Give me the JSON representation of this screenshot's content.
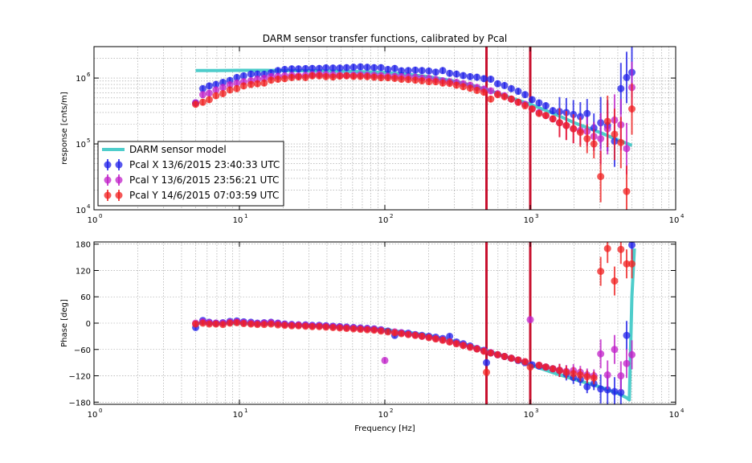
{
  "chart_data": [
    {
      "type": "scatter",
      "title": "DARM sensor transfer functions, calibrated by Pcal",
      "xlabel": "",
      "ylabel": "response [cnts/m]",
      "xscale": "log",
      "yscale": "log",
      "xlim": [
        1,
        10000
      ],
      "ylim": [
        10000,
        3000000
      ],
      "grid": true,
      "legend_position": "lower-left",
      "xticks": [
        {
          "base": "10",
          "exp": "0"
        },
        {
          "base": "10",
          "exp": "1"
        },
        {
          "base": "10",
          "exp": "2"
        },
        {
          "base": "10",
          "exp": "3"
        },
        {
          "base": "10",
          "exp": "4"
        }
      ],
      "yticks": [
        {
          "base": "10",
          "exp": "4"
        },
        {
          "base": "10",
          "exp": "5"
        },
        {
          "base": "10",
          "exp": "6"
        }
      ],
      "model": {
        "name": "DARM sensor model",
        "color": "#4ECDCB",
        "x": [
          5,
          7,
          10,
          15,
          20,
          30,
          50,
          70,
          100,
          150,
          200,
          300,
          400,
          500,
          700,
          1000,
          1500,
          2000,
          3000,
          4000,
          5000
        ],
        "y": [
          1300000,
          1300000,
          1310000,
          1310000,
          1300000,
          1290000,
          1270000,
          1250000,
          1210000,
          1130000,
          1050000,
          900000,
          770000,
          670000,
          520000,
          400000,
          280000,
          210000,
          150000,
          115000,
          95000
        ]
      },
      "series": [
        {
          "name": "Pcal X 13/6/2015 23:40:33 UTC",
          "color": "#2020E8",
          "x": [
            5,
            5.6,
            6.2,
            6.9,
            7.7,
            8.6,
            9.6,
            10.7,
            12,
            13.3,
            14.8,
            16.5,
            18.4,
            20.5,
            22.9,
            25.5,
            28.5,
            31.7,
            35.4,
            39.4,
            44,
            49,
            54.6,
            60.9,
            67.9,
            75.7,
            84.4,
            94.1,
            105,
            117,
            130,
            145,
            162,
            180,
            201,
            224,
            250,
            279,
            311,
            346,
            386,
            430,
            480,
            535,
            597,
            665,
            741,
            826,
            921,
            1030,
            1150,
            1280,
            1430,
            1590,
            1770,
            1980,
            2210,
            2460,
            2740,
            3050,
            3400,
            3800,
            4200,
            4600,
            5000
          ],
          "y": [
            420000,
            690000,
            760000,
            800000,
            860000,
            920000,
            1020000,
            1080000,
            1150000,
            1150000,
            1140000,
            1200000,
            1300000,
            1350000,
            1380000,
            1380000,
            1390000,
            1400000,
            1400000,
            1430000,
            1420000,
            1420000,
            1440000,
            1460000,
            1480000,
            1460000,
            1440000,
            1440000,
            1350000,
            1400000,
            1290000,
            1300000,
            1320000,
            1300000,
            1280000,
            1230000,
            1300000,
            1180000,
            1150000,
            1090000,
            1050000,
            1030000,
            980000,
            960000,
            820000,
            770000,
            690000,
            630000,
            560000,
            470000,
            420000,
            380000,
            320000,
            310000,
            300000,
            280000,
            260000,
            290000,
            175000,
            210000,
            190000,
            110000,
            690000,
            1020000,
            1220000
          ]
        },
        {
          "name": "Pcal Y 13/6/2015 23:56:21 UTC",
          "color": "#C020C8",
          "x": [
            5,
            5.6,
            6.2,
            6.9,
            7.7,
            8.6,
            9.6,
            10.7,
            12,
            13.3,
            14.8,
            16.5,
            18.4,
            20.5,
            22.9,
            25.5,
            28.5,
            31.7,
            35.4,
            39.4,
            44,
            49,
            54.6,
            60.9,
            67.9,
            75.7,
            84.4,
            94.1,
            105,
            117,
            130,
            145,
            162,
            180,
            201,
            224,
            250,
            279,
            311,
            346,
            386,
            430,
            480,
            535,
            597,
            665,
            741,
            826,
            921,
            1030,
            1150,
            1280,
            1430,
            1590,
            1770,
            1980,
            2210,
            2460,
            2740,
            3050,
            3400,
            3800,
            4200,
            4600,
            5000
          ],
          "y": [
            420000,
            560000,
            590000,
            660000,
            720000,
            790000,
            840000,
            880000,
            910000,
            960000,
            990000,
            1050000,
            1060000,
            1080000,
            1100000,
            1080000,
            1100000,
            1130000,
            1140000,
            1130000,
            1120000,
            1110000,
            1100000,
            1110000,
            1120000,
            1110000,
            1100000,
            1090000,
            1070000,
            1060000,
            1050000,
            1040000,
            1030000,
            1000000,
            990000,
            950000,
            910000,
            880000,
            860000,
            820000,
            780000,
            720000,
            680000,
            640000,
            580000,
            540000,
            480000,
            430000,
            400000,
            340000,
            300000,
            270000,
            240000,
            210000,
            190000,
            170000,
            160000,
            155000,
            130000,
            120000,
            170000,
            230000,
            195000,
            85000,
            720000
          ]
        },
        {
          "name": "Pcal Y 14/6/2015 07:03:59 UTC",
          "color": "#F02020",
          "x": [
            5,
            5.6,
            6.2,
            6.9,
            7.7,
            8.6,
            9.6,
            10.7,
            12,
            13.3,
            14.8,
            16.5,
            18.4,
            20.5,
            22.9,
            25.5,
            28.5,
            31.7,
            35.4,
            39.4,
            44,
            49,
            54.6,
            60.9,
            67.9,
            75.7,
            84.4,
            94.1,
            105,
            117,
            130,
            145,
            162,
            180,
            201,
            224,
            250,
            279,
            311,
            346,
            386,
            430,
            480,
            535,
            597,
            665,
            741,
            826,
            921,
            1030,
            1150,
            1280,
            1430,
            1590,
            1770,
            1980,
            2210,
            2460,
            2740,
            3050,
            3400,
            3800,
            4200,
            4600,
            5000
          ],
          "y": [
            400000,
            430000,
            470000,
            540000,
            580000,
            660000,
            690000,
            760000,
            800000,
            820000,
            840000,
            930000,
            960000,
            980000,
            1020000,
            1040000,
            1020000,
            1080000,
            1080000,
            1050000,
            1040000,
            1070000,
            1080000,
            1060000,
            1060000,
            1050000,
            1030000,
            1010000,
            1010000,
            990000,
            960000,
            950000,
            930000,
            910000,
            880000,
            880000,
            840000,
            830000,
            780000,
            740000,
            700000,
            650000,
            610000,
            480000,
            560000,
            520000,
            480000,
            430000,
            380000,
            340000,
            290000,
            270000,
            240000,
            210000,
            190000,
            170000,
            150000,
            120000,
            100000,
            32000,
            220000,
            140000,
            105000,
            19000,
            340000
          ]
        }
      ],
      "vlines": {
        "x": [
          500,
          1000
        ],
        "color": "#C8102E"
      }
    },
    {
      "type": "scatter",
      "title": "",
      "xlabel": "Frequency [Hz]",
      "ylabel": "Phase [deg]",
      "xscale": "log",
      "yscale": "linear",
      "xlim": [
        1,
        10000
      ],
      "ylim": [
        -185,
        185
      ],
      "grid": true,
      "xticks": [
        {
          "base": "10",
          "exp": "0"
        },
        {
          "base": "10",
          "exp": "1"
        },
        {
          "base": "10",
          "exp": "2"
        },
        {
          "base": "10",
          "exp": "3"
        },
        {
          "base": "10",
          "exp": "4"
        }
      ],
      "yticks": [
        "180",
        "120",
        "60",
        "0",
        "−60",
        "−120",
        "−180"
      ],
      "model": {
        "name": "DARM sensor model",
        "color": "#4ECDCB",
        "x": [
          5,
          10,
          20,
          40,
          70,
          100,
          150,
          200,
          300,
          500,
          700,
          1000,
          1500,
          2000,
          3000,
          4000,
          4600,
          4800,
          5000,
          5200
        ],
        "y": [
          0,
          -1,
          -3,
          -7,
          -11,
          -15,
          -22,
          -28,
          -41,
          -62,
          -78,
          -95,
          -115,
          -128,
          -145,
          -160,
          -170,
          -175,
          60,
          170
        ]
      },
      "series": [
        {
          "name": "Pcal X 13/6/2015 23:40:33 UTC",
          "color": "#2020E8",
          "x": [
            5,
            5.6,
            6.2,
            6.9,
            7.7,
            8.6,
            9.6,
            10.7,
            12,
            13.3,
            14.8,
            16.5,
            18.4,
            20.5,
            22.9,
            25.5,
            28.5,
            31.7,
            35.4,
            39.4,
            44,
            49,
            54.6,
            60.9,
            67.9,
            75.7,
            84.4,
            94.1,
            105,
            117,
            130,
            145,
            162,
            180,
            201,
            224,
            250,
            279,
            311,
            346,
            386,
            430,
            480,
            500,
            535,
            597,
            665,
            741,
            826,
            921,
            1030,
            1150,
            1280,
            1430,
            1590,
            1770,
            1980,
            2210,
            2460,
            2740,
            3050,
            3400,
            3800,
            4200,
            4600,
            5000
          ],
          "y": [
            -10,
            6,
            2,
            0,
            1,
            4,
            5,
            3,
            2,
            0,
            1,
            2,
            0,
            -2,
            -3,
            -4,
            -4,
            -5,
            -5,
            -6,
            -7,
            -8,
            -9,
            -10,
            -11,
            -12,
            -13,
            -15,
            -18,
            -28,
            -22,
            -23,
            -26,
            -28,
            -30,
            -32,
            -35,
            -30,
            -43,
            -47,
            -52,
            -58,
            -62,
            -90,
            -68,
            -72,
            -76,
            -80,
            -85,
            -90,
            -95,
            -98,
            -100,
            -104,
            -108,
            -116,
            -124,
            -128,
            -145,
            -138,
            -150,
            -152,
            -156,
            -158,
            -28,
            178
          ]
        },
        {
          "name": "Pcal Y 13/6/2015 23:56:21 UTC",
          "color": "#C020C8",
          "x": [
            5,
            5.6,
            6.2,
            6.9,
            7.7,
            8.6,
            9.6,
            10.7,
            12,
            13.3,
            14.8,
            16.5,
            18.4,
            20.5,
            22.9,
            25.5,
            28.5,
            31.7,
            35.4,
            39.4,
            44,
            49,
            54.6,
            60.9,
            67.9,
            75.7,
            84.4,
            94.1,
            100,
            117,
            130,
            145,
            162,
            180,
            201,
            224,
            250,
            279,
            311,
            346,
            386,
            430,
            480,
            535,
            597,
            665,
            741,
            826,
            921,
            1000,
            1150,
            1280,
            1430,
            1590,
            1770,
            1980,
            2210,
            2460,
            2740,
            3050,
            3400,
            3800,
            4200,
            4600,
            5000
          ],
          "y": [
            0,
            3,
            1,
            0,
            0,
            2,
            3,
            1,
            0,
            -1,
            0,
            1,
            -1,
            -3,
            -4,
            -4,
            -5,
            -6,
            -6,
            -7,
            -8,
            -9,
            -10,
            -11,
            -12,
            -13,
            -14,
            -16,
            -85,
            -20,
            -22,
            -25,
            -27,
            -30,
            -32,
            -35,
            -38,
            -42,
            -46,
            -50,
            -54,
            -58,
            -63,
            -67,
            -72,
            -76,
            -80,
            -84,
            -88,
            8,
            -96,
            -100,
            -104,
            -107,
            -110,
            -108,
            -112,
            -118,
            -120,
            -70,
            -118,
            -60,
            -120,
            -92,
            -72
          ]
        },
        {
          "name": "Pcal Y 14/6/2015 07:03:59 UTC",
          "color": "#F02020",
          "x": [
            5,
            5.6,
            6.2,
            6.9,
            7.7,
            8.6,
            9.6,
            10.7,
            12,
            13.3,
            14.8,
            16.5,
            18.4,
            20.5,
            22.9,
            25.5,
            28.5,
            31.7,
            35.4,
            39.4,
            44,
            49,
            54.6,
            60.9,
            67.9,
            75.7,
            84.4,
            94.1,
            105,
            117,
            130,
            145,
            162,
            180,
            201,
            224,
            250,
            279,
            311,
            346,
            386,
            430,
            480,
            500,
            535,
            597,
            665,
            741,
            826,
            921,
            1000,
            1150,
            1280,
            1430,
            1590,
            1770,
            1980,
            2210,
            2460,
            2740,
            3050,
            3400,
            3800,
            4200,
            4600,
            5000
          ],
          "y": [
            -2,
            0,
            -2,
            -2,
            -3,
            0,
            1,
            -1,
            -2,
            -3,
            -3,
            -2,
            -4,
            -5,
            -6,
            -6,
            -7,
            -8,
            -8,
            -9,
            -10,
            -11,
            -12,
            -13,
            -14,
            -15,
            -16,
            -18,
            -20,
            -22,
            -24,
            -26,
            -28,
            -30,
            -33,
            -36,
            -39,
            -43,
            -47,
            -51,
            -55,
            -59,
            -64,
            -112,
            -68,
            -72,
            -76,
            -80,
            -84,
            -88,
            -100,
            -96,
            -100,
            -104,
            -108,
            -112,
            -115,
            -118,
            -122,
            -125,
            118,
            170,
            96,
            168,
            135,
            135
          ]
        }
      ],
      "vlines": {
        "x": [
          500,
          1000
        ],
        "color": "#C8102E"
      }
    }
  ]
}
